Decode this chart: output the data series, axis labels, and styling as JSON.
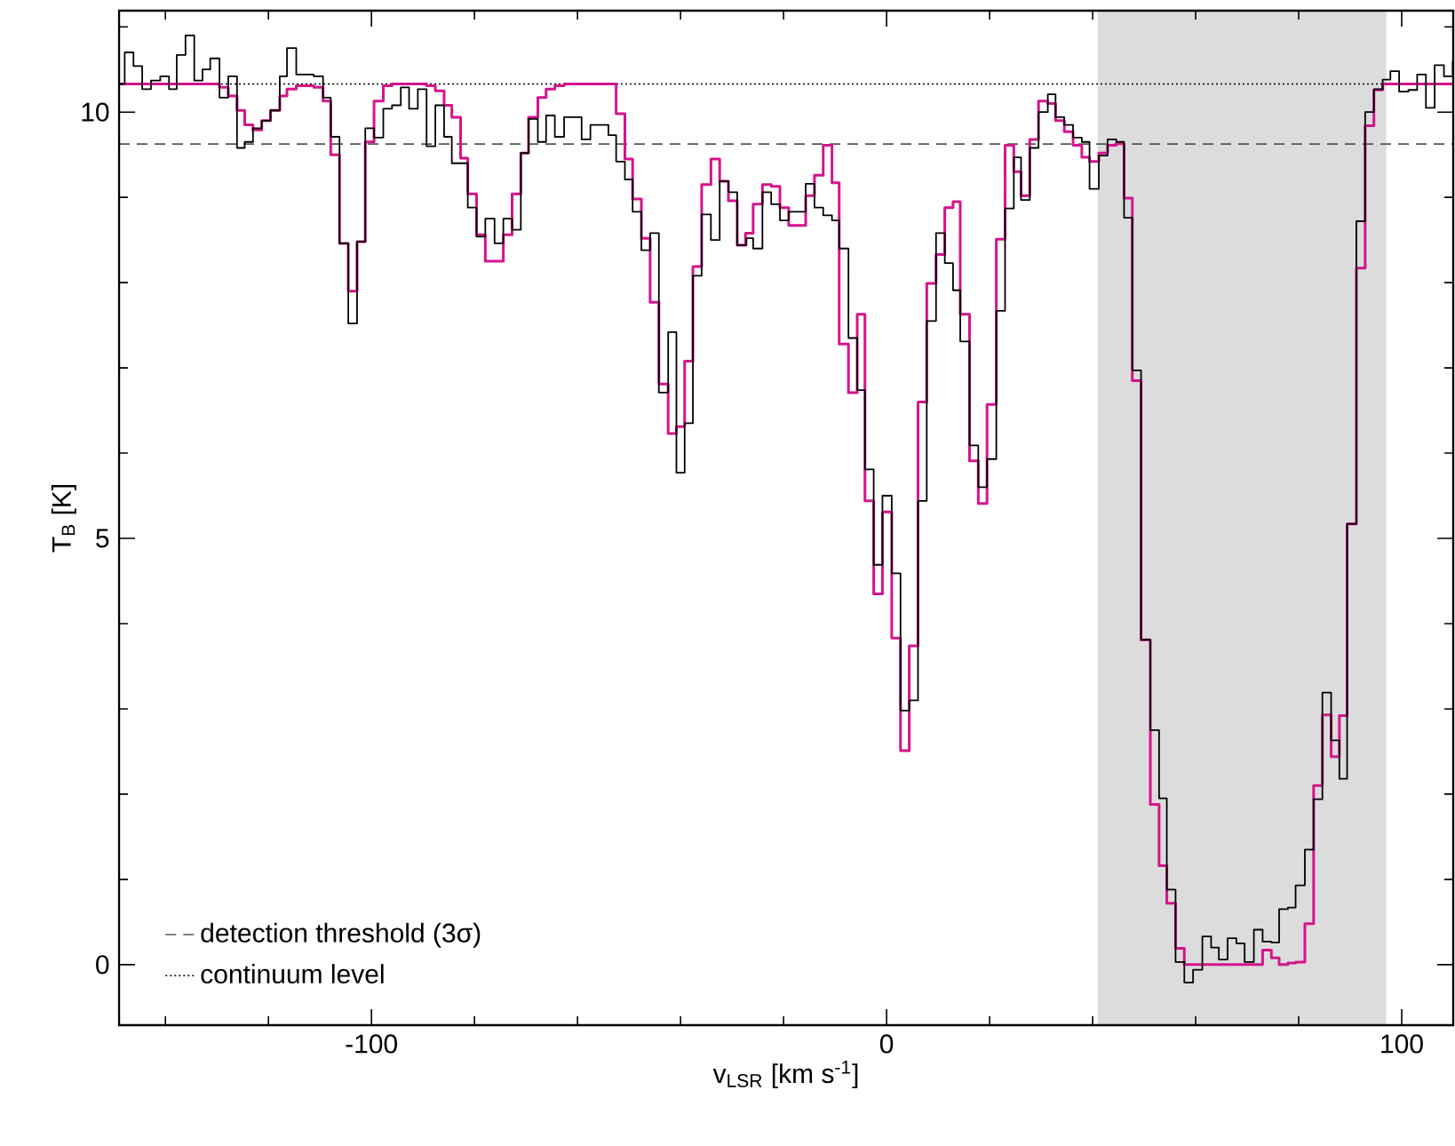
{
  "chart_data": {
    "type": "step",
    "xlabel": "v$_{LSR}$ [km s$^{-1}$]",
    "ylabel": "T$_{B}$ [K]",
    "xlim": [
      -149,
      110
    ],
    "ylim": [
      -0.71,
      11.19
    ],
    "xticks": [
      {
        "value": -140,
        "label": null
      },
      {
        "value": -120,
        "label": null
      },
      -100,
      {
        "value": -80,
        "label": null
      },
      {
        "value": -60,
        "label": null
      },
      {
        "value": -40,
        "label": null
      },
      {
        "value": -20,
        "label": null
      },
      0,
      {
        "value": 20,
        "label": null
      },
      {
        "value": 40,
        "label": null
      },
      {
        "value": 60,
        "label": null
      },
      {
        "value": 80,
        "label": null
      },
      100
    ],
    "yticks": [
      0,
      {
        "value": 1,
        "label": null
      },
      {
        "value": 2,
        "label": null
      },
      {
        "value": 3,
        "label": null
      },
      {
        "value": 4,
        "label": null
      },
      5,
      {
        "value": 6,
        "label": null
      },
      {
        "value": 7,
        "label": null
      },
      {
        "value": 8,
        "label": null
      },
      {
        "value": 9,
        "label": null
      },
      10,
      {
        "value": 11,
        "label": null
      }
    ],
    "grid": false,
    "legend": "bottom left",
    "bands": [
      {
        "axis": "x",
        "from": 41,
        "to": 97,
        "color": "#dcdcdc"
      }
    ],
    "ref_lines": [
      {
        "axis": "y",
        "value": 9.625,
        "label": "detection threshold (3σ)",
        "line_style": "dashed",
        "color": "#555555"
      },
      {
        "axis": "y",
        "value": 10.33,
        "label": "continuum level",
        "line_style": "dotted",
        "color": "#000000"
      }
    ],
    "series": [
      {
        "color": "#d4148c",
        "x": [
          -149,
          -129.5,
          -127.8,
          -126.1,
          -124.6,
          -123.0,
          -121.3,
          -119.6,
          -117.8,
          -116.4,
          -114.6,
          -111.2,
          -109.4,
          -107.9,
          -106.2,
          -104.5,
          -102.8,
          -101.2,
          -99.5,
          -97.7,
          -96.0,
          -89.3,
          -87.6,
          -85.9,
          -84.4,
          -82.7,
          -81.3,
          -79.6,
          -77.9,
          -74.4,
          -72.7,
          -71.0,
          -69.5,
          -67.7,
          -66.1,
          -64.4,
          -62.6,
          -52.5,
          -50.8,
          -49.3,
          -47.6,
          -45.9,
          -44.2,
          -42.4,
          -40.8,
          -39.2,
          -37.6,
          -35.9,
          -34.1,
          -32.4,
          -30.7,
          -29.0,
          -27.4,
          -25.9,
          -24.1,
          -22.4,
          -20.7,
          -19.0,
          -15.7,
          -14.0,
          -12.3,
          -10.6,
          -9.2,
          -7.4,
          -5.7,
          -4.2,
          -2.5,
          -0.8,
          1.0,
          2.7,
          4.4,
          6.1,
          7.8,
          9.6,
          11.3,
          12.9,
          14.3,
          16.1,
          17.8,
          19.5,
          21.3,
          23.0,
          24.7,
          26.1,
          27.8,
          29.5,
          31.3,
          32.8,
          34.5,
          36.2,
          37.9,
          39.4,
          41.2,
          42.9,
          44.6,
          46.1,
          47.7,
          49.4,
          51.2,
          52.9,
          54.4,
          56.1,
          57.8,
          73.0,
          74.7,
          76.2,
          77.9,
          79.4,
          81.2,
          82.9,
          84.6,
          86.3,
          87.9,
          89.4,
          91.2,
          92.9,
          94.6,
          96.3,
          110
        ],
        "values": [
          10.33,
          10.29,
          10.19,
          10.02,
          9.85,
          9.79,
          9.9,
          10.02,
          10.19,
          10.27,
          10.31,
          10.29,
          10.13,
          9.5,
          8.46,
          7.9,
          8.48,
          9.65,
          10.13,
          10.31,
          10.33,
          10.31,
          10.25,
          10.08,
          9.94,
          9.46,
          9.04,
          8.56,
          8.25,
          8.56,
          9.04,
          9.52,
          9.94,
          10.17,
          10.27,
          10.31,
          10.33,
          9.98,
          9.45,
          8.98,
          8.52,
          7.77,
          6.81,
          6.23,
          6.31,
          7.08,
          8.19,
          9.15,
          9.45,
          9.19,
          8.96,
          8.44,
          8.58,
          8.92,
          9.15,
          9.13,
          8.88,
          8.67,
          9.02,
          9.26,
          9.61,
          9.17,
          7.28,
          6.71,
          7.63,
          5.44,
          4.35,
          5.31,
          3.83,
          2.51,
          3.74,
          6.6,
          7.99,
          8.33,
          8.88,
          8.95,
          7.63,
          5.91,
          5.41,
          6.57,
          8.51,
          9.61,
          9.3,
          9.02,
          9.68,
          10.13,
          10.1,
          9.9,
          9.77,
          9.61,
          9.47,
          9.42,
          9.52,
          9.61,
          9.63,
          8.99,
          6.85,
          3.81,
          1.88,
          1.16,
          0.72,
          0.19,
          0.0,
          0.17,
          0.08,
          0.0,
          0.02,
          0.03,
          0.48,
          2.1,
          2.93,
          2.44,
          2.92,
          5.17,
          8.17,
          9.84,
          10.26,
          10.33,
          10.33
        ]
      },
      {
        "color": "#000000",
        "x": [
          -149,
          -147.9,
          -146.2,
          -144.5,
          -142.8,
          -141.0,
          -139.3,
          -137.8,
          -136.1,
          -134.4,
          -132.8,
          -131.3,
          -129.5,
          -127.8,
          -126.1,
          -124.6,
          -123.0,
          -121.3,
          -119.6,
          -117.8,
          -116.4,
          -114.6,
          -111.2,
          -109.4,
          -107.9,
          -106.2,
          -104.5,
          -102.8,
          -101.2,
          -99.5,
          -97.7,
          -96.0,
          -94.3,
          -92.7,
          -91.0,
          -89.3,
          -87.6,
          -85.9,
          -84.4,
          -81.3,
          -79.6,
          -77.9,
          -76.1,
          -74.4,
          -72.7,
          -71.0,
          -69.5,
          -67.7,
          -66.1,
          -64.4,
          -62.6,
          -59.2,
          -57.5,
          -54.0,
          -52.5,
          -50.8,
          -49.3,
          -47.6,
          -45.9,
          -44.2,
          -42.4,
          -40.8,
          -39.2,
          -37.6,
          -35.9,
          -34.1,
          -32.4,
          -30.7,
          -29.0,
          -27.2,
          -25.9,
          -24.1,
          -22.4,
          -20.7,
          -19.0,
          -15.7,
          -14.0,
          -12.3,
          -10.6,
          -9.2,
          -7.4,
          -5.7,
          -4.2,
          -2.5,
          -0.8,
          1.0,
          2.7,
          4.4,
          6.1,
          7.8,
          9.6,
          11.3,
          12.9,
          14.3,
          16.1,
          17.8,
          19.5,
          21.3,
          23.0,
          24.7,
          26.1,
          27.8,
          29.5,
          31.3,
          32.8,
          34.5,
          36.2,
          37.9,
          39.4,
          41.2,
          42.9,
          44.6,
          46.1,
          47.7,
          49.4,
          51.2,
          52.9,
          54.4,
          56.1,
          57.8,
          59.5,
          61.3,
          63.0,
          64.5,
          66.2,
          67.9,
          69.5,
          71.3,
          73.0,
          74.7,
          76.2,
          77.9,
          79.4,
          81.2,
          82.9,
          84.6,
          86.3,
          87.9,
          89.4,
          91.2,
          92.9,
          94.6,
          96.3,
          97.8,
          99.5,
          101.3,
          103.0,
          104.7,
          106.4,
          108.2,
          109.9
        ],
        "values": [
          10.33,
          10.7,
          10.54,
          10.27,
          10.37,
          10.42,
          10.27,
          10.67,
          10.9,
          10.37,
          10.5,
          10.63,
          10.17,
          10.42,
          9.58,
          9.65,
          9.81,
          9.9,
          10.02,
          10.42,
          10.75,
          10.44,
          10.42,
          10.17,
          9.71,
          8.46,
          7.52,
          8.48,
          9.81,
          9.7,
          10.04,
          10.08,
          10.29,
          10.04,
          10.27,
          9.6,
          10.08,
          9.71,
          9.4,
          8.88,
          8.54,
          8.75,
          8.46,
          8.75,
          8.62,
          9.52,
          9.92,
          9.65,
          9.96,
          9.71,
          9.94,
          9.68,
          9.85,
          9.73,
          9.42,
          9.21,
          8.83,
          8.38,
          8.58,
          6.71,
          7.42,
          5.77,
          6.35,
          8.08,
          8.8,
          8.5,
          9.19,
          9.06,
          8.44,
          8.52,
          8.4,
          9.06,
          8.92,
          8.73,
          8.83,
          9.16,
          8.88,
          8.79,
          8.73,
          8.4,
          7.35,
          6.74,
          5.81,
          4.69,
          5.5,
          4.59,
          2.98,
          3.1,
          5.44,
          7.55,
          8.58,
          8.23,
          7.91,
          7.31,
          6.09,
          5.6,
          5.93,
          7.67,
          8.87,
          9.47,
          8.97,
          9.58,
          10.0,
          10.21,
          9.94,
          9.85,
          9.7,
          9.65,
          9.1,
          9.49,
          9.68,
          9.65,
          8.76,
          6.97,
          3.81,
          2.75,
          1.95,
          0.88,
          0.03,
          -0.21,
          -0.06,
          0.33,
          0.2,
          0.06,
          0.31,
          0.25,
          0.03,
          0.41,
          0.27,
          0.26,
          0.65,
          0.67,
          0.93,
          1.35,
          1.94,
          3.19,
          2.63,
          2.18,
          5.17,
          8.72,
          10.0,
          10.27,
          10.38,
          10.48,
          10.24,
          10.26,
          10.44,
          10.05,
          10.55,
          10.42,
          10.6
        ]
      }
    ]
  }
}
